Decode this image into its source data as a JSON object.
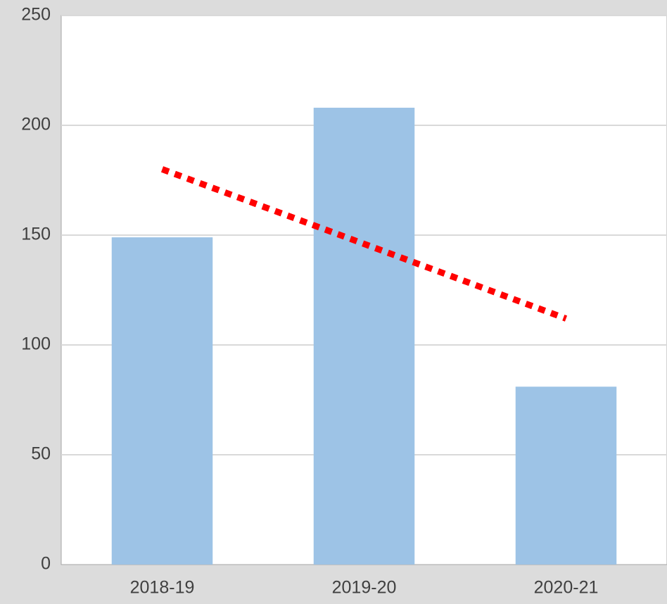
{
  "chart_data": {
    "type": "bar",
    "categories": [
      "2018-19",
      "2019-20",
      "2020-21"
    ],
    "values": [
      149,
      208,
      81
    ],
    "color": "#9dc3e6",
    "ylim": [
      0,
      250
    ],
    "yticks": [
      0,
      50,
      100,
      150,
      200,
      250
    ],
    "grid": true,
    "trendline": {
      "type": "linear",
      "color": "#ff0000"
    }
  }
}
